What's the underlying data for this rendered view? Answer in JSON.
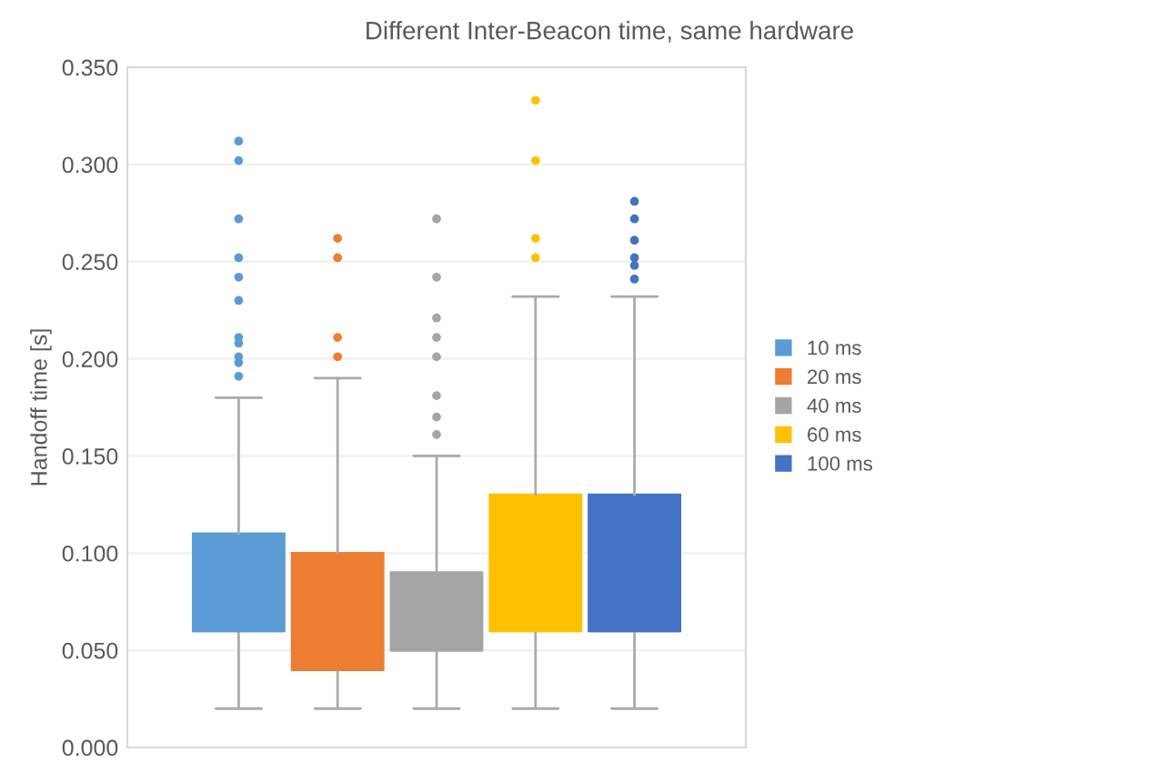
{
  "chart_data": {
    "type": "box",
    "title": "Different Inter-Beacon time, same hardware",
    "ylabel": "Handoff time [s]",
    "categories": [
      null
    ],
    "series": [
      {
        "name": "10 ms",
        "color": "#5b9bd5",
        "boxes": [
          {
            "low": 0.02,
            "q1": 0.06,
            "median": 0.06,
            "q3": 0.11,
            "high": 0.18,
            "outliers": [
              0.312,
              0.302,
              0.272,
              0.252,
              0.242,
              0.23,
              0.211,
              0.208,
              0.201,
              0.198,
              0.191
            ]
          }
        ]
      },
      {
        "name": "20 ms",
        "color": "#ed7d31",
        "boxes": [
          {
            "low": 0.02,
            "q1": 0.04,
            "median": 0.04,
            "q3": 0.1,
            "high": 0.19,
            "outliers": [
              0.262,
              0.252,
              0.211,
              0.201
            ]
          }
        ]
      },
      {
        "name": "40 ms",
        "color": "#a5a5a5",
        "boxes": [
          {
            "low": 0.02,
            "q1": 0.05,
            "median": 0.05,
            "q3": 0.09,
            "high": 0.15,
            "outliers": [
              0.272,
              0.242,
              0.221,
              0.211,
              0.201,
              0.181,
              0.17,
              0.161
            ]
          }
        ]
      },
      {
        "name": "60 ms",
        "color": "#ffc000",
        "boxes": [
          {
            "low": 0.02,
            "q1": 0.06,
            "median": 0.06,
            "q3": 0.13,
            "high": 0.232,
            "outliers": [
              0.333,
              0.302,
              0.262,
              0.252
            ]
          }
        ]
      },
      {
        "name": "100 ms",
        "color": "#4472c4",
        "boxes": [
          {
            "low": 0.02,
            "q1": 0.06,
            "median": 0.06,
            "q3": 0.13,
            "high": 0.232,
            "outliers": [
              0.281,
              0.272,
              0.261,
              0.252,
              0.248,
              0.241
            ]
          }
        ]
      }
    ],
    "ylim": [
      0,
      0.35
    ],
    "yticks": [
      {
        "value": 0,
        "label": "0.000"
      },
      {
        "value": 0.05,
        "label": "0.050"
      },
      {
        "value": 0.1,
        "label": "0.100"
      },
      {
        "value": 0.15,
        "label": "0.150"
      },
      {
        "value": 0.2,
        "label": "0.200"
      },
      {
        "value": 0.25,
        "label": "0.250"
      },
      {
        "value": 0.3,
        "label": "0.300"
      },
      {
        "value": 0.35,
        "label": "0.350"
      }
    ],
    "grid": "y",
    "legend": "right",
    "tick_labels": "y"
  }
}
